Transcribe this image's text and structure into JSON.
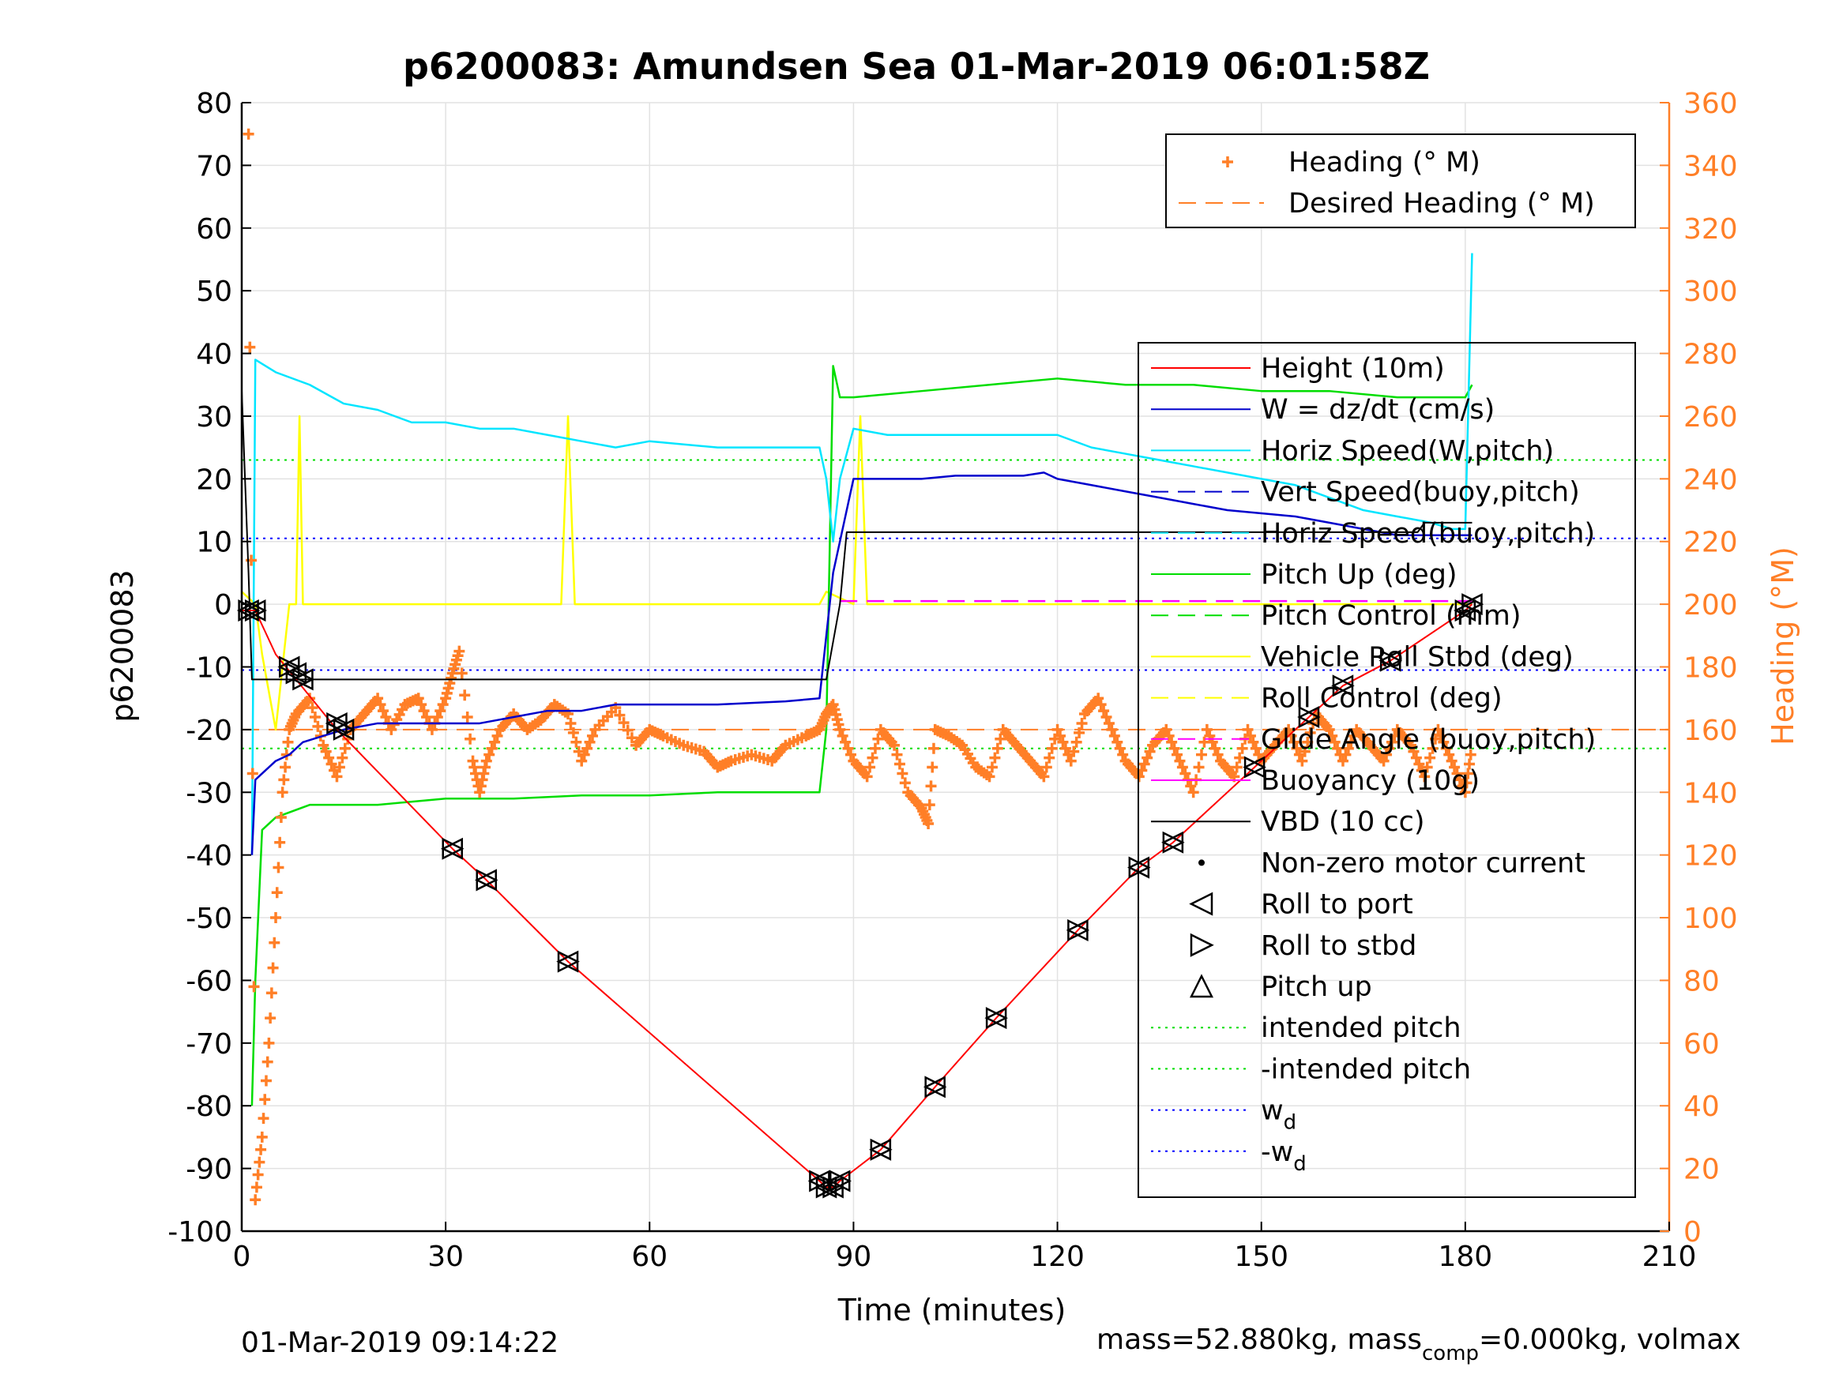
{
  "chart_data": {
    "type": "line",
    "title": "p6200083: Amundsen Sea 01-Mar-2019 06:01:58Z",
    "xlabel": "Time (minutes)",
    "ylabel": "p6200083",
    "ylabel_right": "Heading (°M)",
    "xlim": [
      0,
      210
    ],
    "ylim": [
      -100,
      80
    ],
    "ylim_right": [
      0,
      360
    ],
    "xticks": [
      0,
      30,
      60,
      90,
      120,
      150,
      180,
      210
    ],
    "yticks": [
      -100,
      -90,
      -80,
      -70,
      -60,
      -50,
      -40,
      -30,
      -20,
      -10,
      0,
      10,
      20,
      30,
      40,
      50,
      60,
      70,
      80
    ],
    "yticks_right": [
      0,
      20,
      40,
      60,
      80,
      100,
      120,
      140,
      160,
      180,
      200,
      220,
      240,
      260,
      280,
      300,
      320,
      340,
      360
    ],
    "grid": true,
    "colors": {
      "height": "#ff0000",
      "w": "#0000cc",
      "horiz_speed": "#00e5ff",
      "pitch": "#00dd00",
      "roll": "#ffff00",
      "glide": "#ff00ff",
      "vbd": "#000000",
      "heading": "#ff7f27"
    },
    "series": [
      {
        "name": "Height (10m)",
        "key": "height",
        "x": [
          0,
          1,
          2,
          5,
          8,
          14,
          31,
          36,
          48,
          85,
          86,
          87,
          88,
          94,
          102,
          111,
          123,
          132,
          137,
          149,
          157,
          162,
          169,
          180,
          181
        ],
        "y": [
          -1,
          -1,
          -1,
          -8,
          -12,
          -20,
          -39,
          -44,
          -57,
          -92,
          -93,
          -93,
          -92,
          -87,
          -77,
          -66,
          -52,
          -42,
          -38,
          -26,
          -18,
          -13,
          -9,
          -1,
          0
        ]
      },
      {
        "name": "W = dz/dt (cm/s)",
        "key": "w",
        "x": [
          1.5,
          2,
          3,
          5,
          7,
          9,
          12,
          15,
          20,
          25,
          30,
          35,
          40,
          45,
          50,
          55,
          60,
          70,
          80,
          85,
          86,
          87,
          89,
          90,
          95,
          100,
          105,
          110,
          115,
          118,
          120,
          125,
          130,
          135,
          140,
          145,
          150,
          155,
          160,
          165,
          170,
          175,
          180,
          181
        ],
        "y": [
          -40,
          -28,
          -27,
          -25,
          -24,
          -22,
          -21,
          -20,
          -19,
          -19,
          -19,
          -19,
          -18,
          -17,
          -17,
          -16,
          -16,
          -16,
          -15.5,
          -15,
          -5,
          5,
          15,
          20,
          20,
          20,
          20.5,
          20.5,
          20.5,
          21,
          20,
          19,
          18,
          17,
          16,
          15,
          14.5,
          14,
          13,
          12,
          11,
          11,
          11,
          11
        ]
      },
      {
        "name": "Horiz Speed(W,pitch)",
        "key": "horiz_speed",
        "x": [
          1.5,
          2,
          5,
          10,
          15,
          20,
          25,
          30,
          35,
          40,
          45,
          50,
          55,
          60,
          70,
          80,
          85,
          86,
          87,
          88,
          90,
          95,
          100,
          105,
          110,
          115,
          120,
          125,
          130,
          135,
          140,
          145,
          150,
          155,
          160,
          165,
          170,
          175,
          178,
          180,
          181
        ],
        "y": [
          -40,
          39,
          37,
          35,
          32,
          31,
          29,
          29,
          28,
          28,
          27,
          26,
          25,
          26,
          25,
          25,
          25,
          20,
          10,
          20,
          28,
          27,
          27,
          27,
          27,
          27,
          27,
          25,
          24,
          23,
          22,
          21,
          20,
          19,
          17,
          15,
          14,
          13,
          12,
          12,
          56
        ]
      },
      {
        "name": "Pitch Up (deg)",
        "key": "pitch",
        "x": [
          1.5,
          2,
          3,
          5,
          10,
          20,
          30,
          40,
          50,
          60,
          70,
          80,
          85,
          86,
          87,
          88,
          90,
          100,
          110,
          120,
          130,
          140,
          150,
          160,
          170,
          180,
          181
        ],
        "y": [
          -80,
          -60,
          -36,
          -34,
          -32,
          -32,
          -31,
          -31,
          -30.5,
          -30.5,
          -30,
          -30,
          -30,
          -20,
          38,
          33,
          33,
          34,
          35,
          36,
          35,
          35,
          34,
          34,
          33,
          33,
          35
        ]
      },
      {
        "name": "Vehicle Roll Stbd (deg)",
        "key": "roll",
        "x": [
          0,
          2,
          3,
          5,
          6,
          7,
          8,
          8.5,
          9,
          10,
          15,
          20,
          30,
          36,
          37,
          38,
          40,
          47,
          48,
          49,
          50,
          60,
          70,
          80,
          85,
          86,
          90,
          91,
          92,
          95,
          100,
          110,
          120,
          130,
          140,
          150,
          160,
          170,
          180,
          181
        ],
        "y": [
          2,
          0,
          -8,
          -20,
          -10,
          0,
          0,
          30,
          0,
          0,
          0,
          0,
          0,
          0,
          0,
          0,
          0,
          0,
          30,
          0,
          0,
          0,
          0,
          0,
          0,
          2,
          0,
          30,
          0,
          0,
          0,
          0,
          0,
          0,
          0,
          0,
          0,
          0,
          0,
          0
        ]
      },
      {
        "name": "Glide Angle (buoy,pitch)",
        "key": "glide",
        "segments": [
          [
            88,
            0.5,
            181,
            0.5
          ]
        ]
      },
      {
        "name": "VBD (10 cc)",
        "key": "vbd",
        "x": [
          0,
          1,
          1.5,
          86,
          88,
          89,
          173,
          174,
          181
        ],
        "y": [
          34,
          5,
          -12,
          -12,
          0,
          11.5,
          11.5,
          13,
          13
        ]
      },
      {
        "name": "Heading (° M)",
        "key": "heading",
        "axis": "right",
        "x": [
          1,
          2,
          3,
          4,
          5,
          6,
          7,
          8,
          10,
          12,
          14,
          16,
          18,
          20,
          22,
          24,
          26,
          28,
          30,
          31,
          32,
          34,
          35,
          36,
          38,
          40,
          42,
          44,
          46,
          48,
          50,
          52,
          55,
          58,
          60,
          62,
          65,
          68,
          70,
          72,
          75,
          78,
          80,
          83,
          85,
          86,
          87,
          88,
          90,
          92,
          94,
          96,
          98,
          100,
          101,
          102,
          104,
          106,
          108,
          110,
          112,
          114,
          116,
          118,
          120,
          122,
          124,
          126,
          128,
          130,
          132,
          134,
          136,
          138,
          140,
          142,
          144,
          146,
          148,
          150,
          152,
          154,
          156,
          158,
          160,
          162,
          164,
          166,
          168,
          170,
          172,
          174,
          176,
          178,
          180,
          181
        ],
        "y": [
          350,
          10,
          30,
          60,
          100,
          140,
          160,
          165,
          170,
          155,
          145,
          160,
          165,
          170,
          160,
          168,
          170,
          160,
          170,
          178,
          185,
          150,
          140,
          150,
          160,
          165,
          160,
          163,
          168,
          165,
          150,
          160,
          167,
          155,
          160,
          158,
          155,
          153,
          148,
          150,
          152,
          150,
          155,
          158,
          160,
          165,
          168,
          160,
          150,
          145,
          160,
          155,
          140,
          135,
          130,
          160,
          158,
          155,
          148,
          145,
          160,
          155,
          150,
          145,
          160,
          150,
          165,
          170,
          160,
          150,
          145,
          155,
          160,
          150,
          140,
          160,
          150,
          145,
          160,
          150,
          155,
          160,
          150,
          165,
          160,
          150,
          160,
          155,
          150,
          160,
          155,
          145,
          160,
          150,
          140,
          155
        ]
      },
      {
        "name": "Desired Heading (° M)",
        "key": "desired_heading",
        "axis": "right",
        "value": 160
      }
    ],
    "reference_lines": [
      {
        "name": "intended pitch",
        "y": 23
      },
      {
        "name": "-intended pitch",
        "y": -23
      },
      {
        "name": "w_d",
        "y": 10.5
      },
      {
        "name": "-w_d",
        "y": -10.5
      }
    ],
    "markers": [
      {
        "name": "Roll to port / Roll to stbd / Pitch up",
        "x": [
          1,
          2,
          7,
          8,
          9,
          14,
          15,
          31,
          36,
          48,
          85,
          86,
          87,
          88,
          94,
          102,
          111,
          123,
          132,
          137,
          149,
          157,
          162,
          169,
          180,
          181
        ],
        "y": [
          -1,
          -1,
          -10,
          -11,
          -12,
          -19,
          -20,
          -39,
          -44,
          -57,
          -92,
          -93,
          -93,
          -92,
          -87,
          -77,
          -66,
          -52,
          -42,
          -38,
          -26,
          -18,
          -13,
          -9,
          -1,
          0
        ]
      }
    ],
    "legend_top": {
      "placement": "top-right",
      "entries": [
        "Heading (° M)",
        "Desired Heading (° M)"
      ]
    },
    "legend_main": {
      "placement": "right",
      "entries": [
        "Height (10m)",
        "W = dz/dt (cm/s)",
        "Horiz Speed(W,pitch)",
        "Vert Speed(buoy,pitch)",
        "Horiz Speed(buoy,pitch)",
        "Pitch Up (deg)",
        "Pitch Control (mm)",
        "Vehicle Roll Stbd (deg)",
        "Roll Control (deg)",
        "Glide Angle (buoy,pitch)",
        "Buoyancy (10g)",
        "VBD (10 cc)",
        "Non-zero motor current",
        "Roll to port",
        "Roll to stbd",
        "Pitch up",
        "intended pitch",
        "-intended pitch",
        "w",
        "-w"
      ],
      "subscript": "d"
    }
  },
  "footer": {
    "timestamp": "01-Mar-2019 09:14:22",
    "mass_prefix": "mass=52.880kg, mass",
    "mass_sub": "comp",
    "mass_suffix": "=0.000kg, volmax"
  }
}
